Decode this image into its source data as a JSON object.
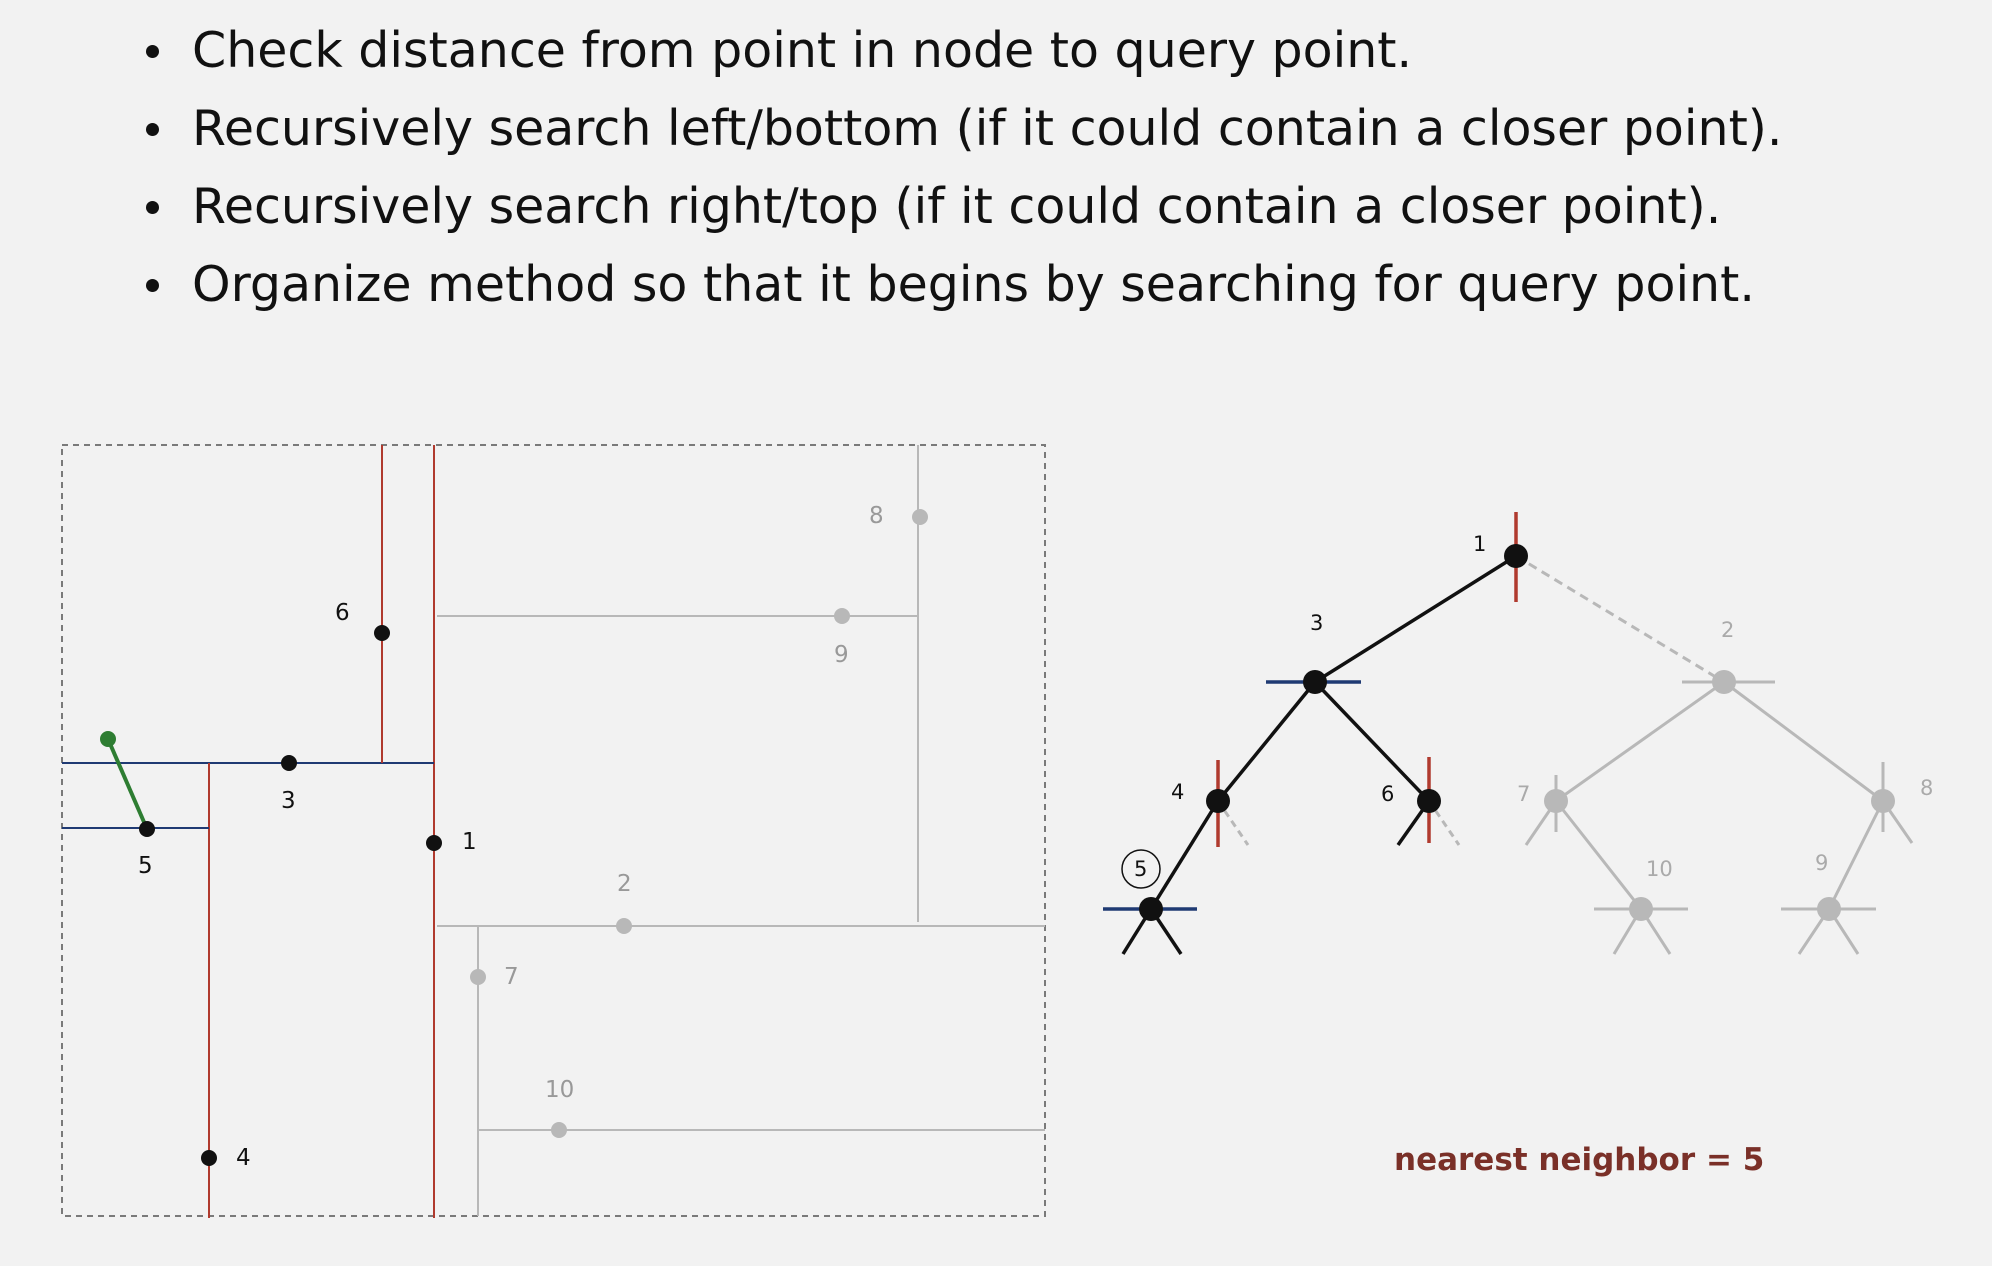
{
  "bullets": [
    "Check distance from point in node to query point.",
    "Recursively search left/bottom (if it could contain a closer point).",
    "Recursively search right/top (if it could contain a closer point).",
    "Organize method so that it begins by searching for query point."
  ],
  "plane_labels": [
    "1",
    "2",
    "3",
    "4",
    "5",
    "6",
    "7",
    "8",
    "9",
    "10"
  ],
  "tree_labels": [
    "1",
    "2",
    "3",
    "4",
    "5",
    "6",
    "7",
    "8",
    "9",
    "10"
  ],
  "result": "nearest neighbor = 5",
  "colors": {
    "vertical_split": "#b03a2e",
    "horizontal_split": "#1f3a73",
    "query": "#2e7d32",
    "active": "#111111",
    "inactive": "#b8b8b8",
    "result": "#7a3028"
  }
}
